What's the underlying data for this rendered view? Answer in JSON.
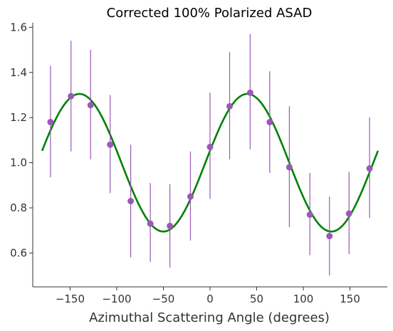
{
  "chart_data": {
    "type": "scatter",
    "title": "Corrected 100% Polarized ASAD",
    "xlabel": "Azimuthal Scattering Angle (degrees)",
    "ylabel": "",
    "xlim": [
      -190,
      190
    ],
    "ylim": [
      0.45,
      1.62
    ],
    "xticks": [
      -150,
      -100,
      -50,
      0,
      50,
      100,
      150
    ],
    "yticks": [
      0.6,
      0.8,
      1.0,
      1.2,
      1.4,
      1.6
    ],
    "xtick_labels": [
      "−150",
      "−100",
      "−50",
      "0",
      "50",
      "100",
      "150"
    ],
    "ytick_labels": [
      "0.6",
      "0.8",
      "1.0",
      "1.2",
      "1.4",
      "1.6"
    ],
    "grid": false,
    "series": [
      {
        "kind": "points_with_error_bars",
        "color": "#9b59b6",
        "error_color": "#9b59b6",
        "x": [
          -171,
          -149,
          -128,
          -107,
          -85,
          -64,
          -43,
          -21,
          0,
          21,
          43,
          64,
          85,
          107,
          128,
          149,
          171
        ],
        "y": [
          1.18,
          1.295,
          1.255,
          1.08,
          0.83,
          0.73,
          0.72,
          0.85,
          1.07,
          1.25,
          1.31,
          1.18,
          0.98,
          0.77,
          0.675,
          0.775,
          0.975
        ],
        "y_low": [
          0.935,
          1.05,
          1.015,
          0.865,
          0.58,
          0.56,
          0.535,
          0.655,
          0.84,
          1.015,
          1.06,
          0.955,
          0.715,
          0.59,
          0.5,
          0.595,
          0.755
        ],
        "y_high": [
          1.43,
          1.54,
          1.5,
          1.3,
          1.08,
          0.91,
          0.905,
          1.05,
          1.31,
          1.49,
          1.57,
          1.405,
          1.25,
          0.955,
          0.85,
          0.96,
          1.2
        ]
      },
      {
        "kind": "fit_curve",
        "color": "#008000",
        "function": "1.0 + 0.305*cos(2*(x - 40))",
        "x_range": [
          -180,
          180
        ]
      }
    ]
  }
}
